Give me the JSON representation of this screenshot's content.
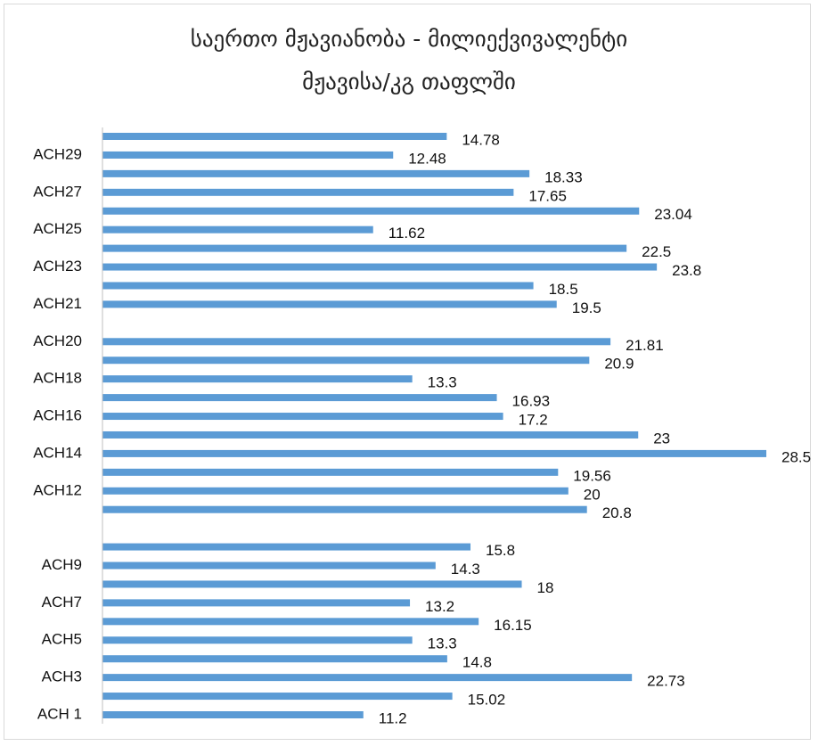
{
  "chart_data": {
    "type": "bar",
    "orientation": "horizontal",
    "title": "საერთო მჟავიანობა - მილიექვივალენტი\nმჟავისა/კგ თაფლში",
    "categories": [
      "ACH 1",
      null,
      "ACH3",
      null,
      "ACH5",
      null,
      "ACH7",
      null,
      "ACH9",
      null,
      null,
      null,
      "ACH12",
      null,
      "ACH14",
      null,
      "ACH16",
      null,
      "ACH18",
      null,
      "ACH20",
      null,
      "ACH21",
      null,
      "ACH23",
      null,
      "ACH25",
      null,
      "ACH27",
      null,
      "ACH29",
      null
    ],
    "values": [
      11.2,
      15.02,
      22.73,
      14.8,
      13.3,
      16.15,
      13.2,
      18,
      14.3,
      15.8,
      null,
      20.8,
      20,
      19.56,
      28.5,
      23,
      17.2,
      16.93,
      13.3,
      20.9,
      21.81,
      null,
      19.5,
      18.5,
      23.8,
      22.5,
      11.62,
      23.04,
      17.65,
      18.33,
      12.48,
      14.78
    ],
    "color": "#5b9bd5"
  }
}
